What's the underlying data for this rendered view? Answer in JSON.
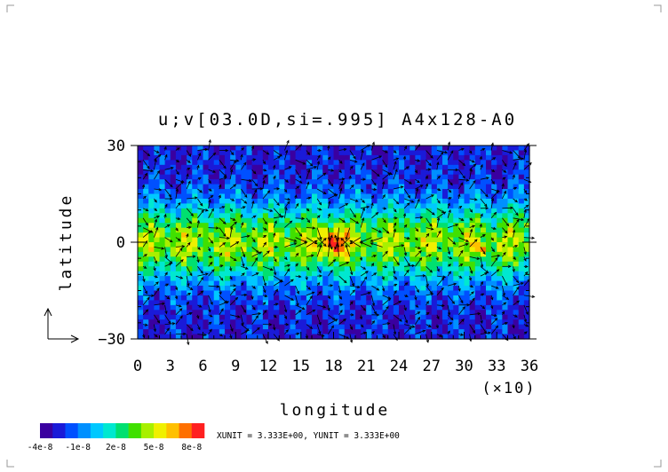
{
  "chart_data": {
    "type": "heatmap",
    "title": "u;v[03.0D,si=.995] A4x128-A0",
    "xlabel": "longitude",
    "ylabel": "latitude",
    "x_scale_note": "(×10)",
    "xlim": [
      0,
      36
    ],
    "ylim": [
      -30,
      30
    ],
    "x_ticks": [
      "0",
      "3",
      "6",
      "9",
      "12",
      "15",
      "18",
      "21",
      "24",
      "27",
      "30",
      "33",
      "36"
    ],
    "y_ticks": [
      "30",
      "0",
      "-30"
    ],
    "y_tick_values": [
      30,
      0,
      -30
    ],
    "grid": false,
    "overlay": "wind vectors (u;v)",
    "colorbar": {
      "orientation": "horizontal",
      "placement": "bottom-left",
      "range": [
        -4e-08,
        9e-08
      ],
      "colors": [
        "#3a00a0",
        "#1a1ad8",
        "#0050ff",
        "#0090ff",
        "#00c8ff",
        "#00e8d0",
        "#00e070",
        "#40e000",
        "#a8f000",
        "#f0f000",
        "#ffc000",
        "#ff7000",
        "#ff2020"
      ],
      "tick_labels": [
        "-4e-8",
        "-1e-8",
        "2e-8",
        "5e-8",
        "8e-8"
      ],
      "tick_values": [
        -4e-08,
        -1e-08,
        2e-08,
        5e-08,
        8e-08
      ]
    },
    "unit_note": "XUNIT = 3.333E+00, YUNIT = 3.333E+00",
    "features": [
      {
        "lat_band": [
          -30,
          -10
        ],
        "level": "low"
      },
      {
        "lat_band": [
          -10,
          10
        ],
        "level": "high"
      },
      {
        "lat_band": [
          10,
          30
        ],
        "level": "low"
      },
      {
        "center": [
          18,
          0
        ],
        "level": "max"
      },
      {
        "center": [
          31.5,
          -2
        ],
        "level": "max"
      }
    ]
  }
}
